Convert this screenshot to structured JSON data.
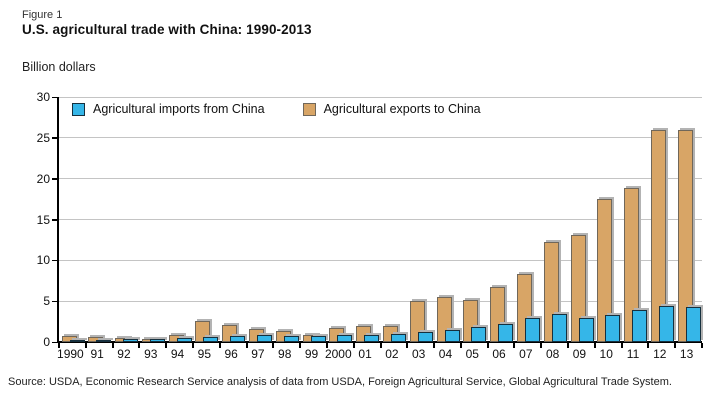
{
  "figure_label": "Figure 1",
  "title": "U.S. agricultural trade with China: 1990-2013",
  "y_axis_unit_label": "Billion dollars",
  "source": "Source: USDA, Economic Research Service analysis of data from USDA, Foreign Agricultural Service, Global Agricultural Trade System.",
  "colors": {
    "imports_fill": "#35b6e8",
    "imports_border": "#16303e",
    "exports_fill": "#d8a566",
    "exports_border": "#70675a",
    "bar_shadow": "#b3b3b3",
    "gridline": "#c4c4c4",
    "axis": "#000000"
  },
  "chart_data": {
    "type": "bar",
    "title": "U.S. agricultural trade with China: 1990-2013",
    "xlabel": "",
    "ylabel": "Billion dollars",
    "ylim": [
      0,
      30
    ],
    "yticks": [
      0,
      5,
      10,
      15,
      20,
      25,
      30
    ],
    "grid": true,
    "legend_position": "top-inside",
    "categories": [
      "1990",
      "91",
      "92",
      "93",
      "94",
      "95",
      "96",
      "97",
      "98",
      "99",
      "2000",
      "01",
      "02",
      "03",
      "04",
      "05",
      "06",
      "07",
      "08",
      "09",
      "10",
      "11",
      "12",
      "13"
    ],
    "series": [
      {
        "name": "Agricultural imports from China",
        "color": "#35b6e8",
        "values": [
          0.3,
          0.3,
          0.4,
          0.4,
          0.5,
          0.6,
          0.7,
          0.8,
          0.7,
          0.7,
          0.8,
          0.9,
          1.0,
          1.2,
          1.5,
          1.8,
          2.2,
          2.9,
          3.4,
          2.9,
          3.3,
          3.9,
          4.4,
          4.3
        ]
      },
      {
        "name": "Agricultural exports to China",
        "color": "#d8a566",
        "values": [
          0.7,
          0.6,
          0.5,
          0.4,
          0.9,
          2.6,
          2.1,
          1.6,
          1.3,
          0.9,
          1.7,
          1.9,
          2.0,
          5.0,
          5.5,
          5.2,
          6.7,
          8.3,
          12.2,
          13.1,
          17.5,
          18.9,
          25.9,
          25.9
        ]
      }
    ]
  }
}
